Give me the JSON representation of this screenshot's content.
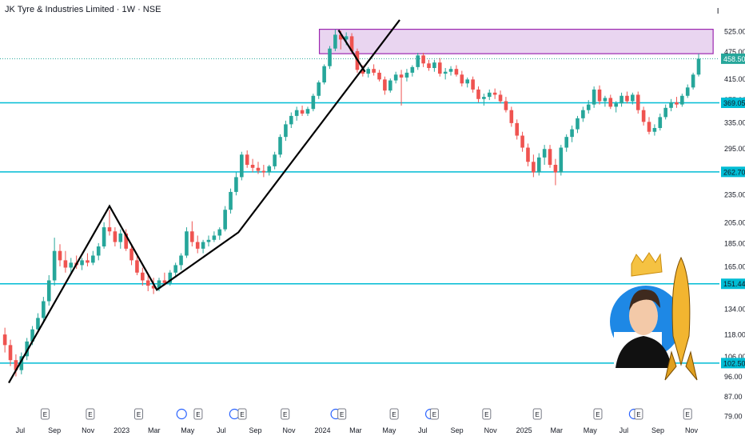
{
  "header": {
    "title": "JK Tyre & Industries Limited · 1W · NSE",
    "currency": "INR"
  },
  "colors": {
    "up": "#26a69a",
    "down": "#ef5350",
    "level_line": "#00bcd4",
    "zone_fill": "#e9d5f0",
    "zone_stroke": "#9c27b0",
    "trend": "#000000",
    "axis_text": "#131722",
    "current_price_bg": "#26a69a",
    "level_label_bg": "#00bcd4"
  },
  "chart_data": {
    "type": "candlestick",
    "interval": "1W",
    "y_scale": "log",
    "price_ticks": [
      "525.00",
      "475.00",
      "415.00",
      "375.00",
      "335.00",
      "295.00",
      "235.00",
      "205.00",
      "185.00",
      "165.00",
      "134.00",
      "118.00",
      "106.00",
      "96.00",
      "87.00",
      "79.00"
    ],
    "price_tick_values": [
      525,
      475,
      415,
      375,
      335,
      295,
      235,
      205,
      185,
      165,
      134,
      118,
      106,
      96,
      87,
      79
    ],
    "x_labels": [
      "Jul",
      "Sep",
      "Nov",
      "2023",
      "Mar",
      "May",
      "Jul",
      "Sep",
      "Nov",
      "2024",
      "Mar",
      "May",
      "Jul",
      "Sep",
      "Nov",
      "2025",
      "Mar",
      "May",
      "Jul",
      "Sep",
      "Nov"
    ],
    "x_label_dates": [
      "2022-07-01",
      "2022-09-01",
      "2022-11-01",
      "2023-01-01",
      "2023-03-01",
      "2023-05-01",
      "2023-07-01",
      "2023-09-01",
      "2023-11-01",
      "2024-01-01",
      "2024-03-01",
      "2024-05-01",
      "2024-07-01",
      "2024-09-01",
      "2024-11-01",
      "2025-01-01",
      "2025-03-01",
      "2025-05-01",
      "2025-07-01",
      "2025-09-01",
      "2025-11-01"
    ],
    "horizontal_levels": [
      {
        "value": 369.05,
        "label": "369.05"
      },
      {
        "value": 262.7,
        "label": "262.70"
      },
      {
        "value": 151.44,
        "label": "151.44"
      },
      {
        "value": 102.5,
        "label": "102.50"
      }
    ],
    "current_price": {
      "value": 458.5,
      "label": "458.50"
    },
    "resistance_zone": {
      "from_date": "2024-01-01",
      "to_date": "2025-11-20",
      "low": 470,
      "high": 530
    },
    "trendlines": [
      {
        "points": [
          [
            "2022-06-10",
            93
          ],
          [
            "2022-12-10",
            222
          ],
          [
            "2023-03-06",
            147
          ],
          [
            "2023-08-01",
            195
          ],
          [
            "2024-05-20",
            555
          ]
        ]
      },
      {
        "points": [
          [
            "2024-01-30",
            528
          ],
          [
            "2024-03-18",
            430
          ]
        ]
      }
    ],
    "event_markers": [
      {
        "date": "2022-08-15",
        "type": "E"
      },
      {
        "date": "2022-11-05",
        "type": "E"
      },
      {
        "date": "2023-02-01",
        "type": "E"
      },
      {
        "date": "2023-04-20",
        "type": "D"
      },
      {
        "date": "2023-05-20",
        "type": "E"
      },
      {
        "date": "2023-07-25",
        "type": "D"
      },
      {
        "date": "2023-08-08",
        "type": "E"
      },
      {
        "date": "2023-10-25",
        "type": "E"
      },
      {
        "date": "2024-01-25",
        "type": "D"
      },
      {
        "date": "2024-02-05",
        "type": "E"
      },
      {
        "date": "2024-05-10",
        "type": "E"
      },
      {
        "date": "2024-07-15",
        "type": "D"
      },
      {
        "date": "2024-07-22",
        "type": "E"
      },
      {
        "date": "2024-10-25",
        "type": "E"
      },
      {
        "date": "2025-01-25",
        "type": "E"
      },
      {
        "date": "2025-05-15",
        "type": "E"
      },
      {
        "date": "2025-07-20",
        "type": "D"
      },
      {
        "date": "2025-07-28",
        "type": "E"
      },
      {
        "date": "2025-10-25",
        "type": "E"
      }
    ],
    "candles": [
      {
        "d": "2022-06-03",
        "o": 118,
        "h": 122,
        "l": 108,
        "c": 112
      },
      {
        "d": "2022-06-13",
        "o": 112,
        "h": 115,
        "l": 101,
        "c": 104
      },
      {
        "d": "2022-06-23",
        "o": 104,
        "h": 107,
        "l": 96,
        "c": 99
      },
      {
        "d": "2022-07-03",
        "o": 99,
        "h": 108,
        "l": 97,
        "c": 106
      },
      {
        "d": "2022-07-13",
        "o": 106,
        "h": 116,
        "l": 104,
        "c": 114
      },
      {
        "d": "2022-07-23",
        "o": 114,
        "h": 123,
        "l": 112,
        "c": 121
      },
      {
        "d": "2022-08-02",
        "o": 121,
        "h": 131,
        "l": 119,
        "c": 128
      },
      {
        "d": "2022-08-12",
        "o": 128,
        "h": 142,
        "l": 126,
        "c": 139
      },
      {
        "d": "2022-08-22",
        "o": 139,
        "h": 158,
        "l": 136,
        "c": 154
      },
      {
        "d": "2022-09-01",
        "o": 154,
        "h": 190,
        "l": 150,
        "c": 178
      },
      {
        "d": "2022-09-11",
        "o": 178,
        "h": 184,
        "l": 165,
        "c": 170
      },
      {
        "d": "2022-09-21",
        "o": 170,
        "h": 178,
        "l": 160,
        "c": 164
      },
      {
        "d": "2022-10-01",
        "o": 164,
        "h": 172,
        "l": 160,
        "c": 168
      },
      {
        "d": "2022-10-11",
        "o": 168,
        "h": 174,
        "l": 163,
        "c": 166
      },
      {
        "d": "2022-10-21",
        "o": 166,
        "h": 172,
        "l": 162,
        "c": 170
      },
      {
        "d": "2022-10-31",
        "o": 170,
        "h": 176,
        "l": 165,
        "c": 168
      },
      {
        "d": "2022-11-10",
        "o": 168,
        "h": 178,
        "l": 166,
        "c": 174
      },
      {
        "d": "2022-11-20",
        "o": 174,
        "h": 185,
        "l": 170,
        "c": 182
      },
      {
        "d": "2022-11-30",
        "o": 182,
        "h": 205,
        "l": 180,
        "c": 200
      },
      {
        "d": "2022-12-10",
        "o": 200,
        "h": 218,
        "l": 192,
        "c": 196
      },
      {
        "d": "2022-12-20",
        "o": 196,
        "h": 200,
        "l": 182,
        "c": 186
      },
      {
        "d": "2022-12-30",
        "o": 186,
        "h": 198,
        "l": 180,
        "c": 194
      },
      {
        "d": "2023-01-09",
        "o": 194,
        "h": 198,
        "l": 178,
        "c": 180
      },
      {
        "d": "2023-01-19",
        "o": 180,
        "h": 184,
        "l": 166,
        "c": 170
      },
      {
        "d": "2023-01-29",
        "o": 170,
        "h": 174,
        "l": 158,
        "c": 160
      },
      {
        "d": "2023-02-08",
        "o": 160,
        "h": 164,
        "l": 150,
        "c": 154
      },
      {
        "d": "2023-02-18",
        "o": 154,
        "h": 158,
        "l": 146,
        "c": 150
      },
      {
        "d": "2023-02-28",
        "o": 150,
        "h": 156,
        "l": 144,
        "c": 148
      },
      {
        "d": "2023-03-10",
        "o": 148,
        "h": 156,
        "l": 146,
        "c": 154
      },
      {
        "d": "2023-03-20",
        "o": 154,
        "h": 160,
        "l": 150,
        "c": 152
      },
      {
        "d": "2023-03-30",
        "o": 152,
        "h": 162,
        "l": 150,
        "c": 160
      },
      {
        "d": "2023-04-09",
        "o": 160,
        "h": 168,
        "l": 156,
        "c": 166
      },
      {
        "d": "2023-04-19",
        "o": 166,
        "h": 176,
        "l": 162,
        "c": 174
      },
      {
        "d": "2023-04-29",
        "o": 174,
        "h": 200,
        "l": 172,
        "c": 196
      },
      {
        "d": "2023-05-09",
        "o": 196,
        "h": 206,
        "l": 182,
        "c": 186
      },
      {
        "d": "2023-05-19",
        "o": 186,
        "h": 192,
        "l": 176,
        "c": 180
      },
      {
        "d": "2023-05-29",
        "o": 180,
        "h": 188,
        "l": 176,
        "c": 186
      },
      {
        "d": "2023-06-08",
        "o": 186,
        "h": 192,
        "l": 182,
        "c": 188
      },
      {
        "d": "2023-06-18",
        "o": 188,
        "h": 196,
        "l": 186,
        "c": 192
      },
      {
        "d": "2023-06-28",
        "o": 192,
        "h": 200,
        "l": 188,
        "c": 198
      },
      {
        "d": "2023-07-08",
        "o": 198,
        "h": 222,
        "l": 196,
        "c": 218
      },
      {
        "d": "2023-07-18",
        "o": 218,
        "h": 242,
        "l": 214,
        "c": 238
      },
      {
        "d": "2023-07-28",
        "o": 238,
        "h": 262,
        "l": 234,
        "c": 256
      },
      {
        "d": "2023-08-07",
        "o": 256,
        "h": 290,
        "l": 252,
        "c": 286
      },
      {
        "d": "2023-08-17",
        "o": 286,
        "h": 292,
        "l": 268,
        "c": 272
      },
      {
        "d": "2023-08-27",
        "o": 272,
        "h": 280,
        "l": 262,
        "c": 268
      },
      {
        "d": "2023-09-06",
        "o": 268,
        "h": 276,
        "l": 260,
        "c": 264
      },
      {
        "d": "2023-09-16",
        "o": 264,
        "h": 272,
        "l": 256,
        "c": 262
      },
      {
        "d": "2023-09-26",
        "o": 262,
        "h": 272,
        "l": 258,
        "c": 270
      },
      {
        "d": "2023-10-06",
        "o": 270,
        "h": 290,
        "l": 266,
        "c": 286
      },
      {
        "d": "2023-10-16",
        "o": 286,
        "h": 316,
        "l": 282,
        "c": 312
      },
      {
        "d": "2023-10-26",
        "o": 312,
        "h": 338,
        "l": 306,
        "c": 332
      },
      {
        "d": "2023-11-05",
        "o": 332,
        "h": 352,
        "l": 326,
        "c": 346
      },
      {
        "d": "2023-11-15",
        "o": 346,
        "h": 362,
        "l": 338,
        "c": 356
      },
      {
        "d": "2023-11-25",
        "o": 356,
        "h": 364,
        "l": 346,
        "c": 350
      },
      {
        "d": "2023-12-05",
        "o": 350,
        "h": 362,
        "l": 346,
        "c": 358
      },
      {
        "d": "2023-12-15",
        "o": 358,
        "h": 386,
        "l": 354,
        "c": 382
      },
      {
        "d": "2023-12-25",
        "o": 382,
        "h": 412,
        "l": 376,
        "c": 408
      },
      {
        "d": "2024-01-04",
        "o": 408,
        "h": 446,
        "l": 404,
        "c": 442
      },
      {
        "d": "2024-01-14",
        "o": 442,
        "h": 488,
        "l": 436,
        "c": 482
      },
      {
        "d": "2024-01-24",
        "o": 482,
        "h": 530,
        "l": 476,
        "c": 516
      },
      {
        "d": "2024-02-03",
        "o": 516,
        "h": 526,
        "l": 480,
        "c": 504
      },
      {
        "d": "2024-02-13",
        "o": 504,
        "h": 522,
        "l": 490,
        "c": 512
      },
      {
        "d": "2024-02-23",
        "o": 512,
        "h": 520,
        "l": 470,
        "c": 476
      },
      {
        "d": "2024-03-04",
        "o": 476,
        "h": 482,
        "l": 428,
        "c": 434
      },
      {
        "d": "2024-03-14",
        "o": 434,
        "h": 444,
        "l": 420,
        "c": 426
      },
      {
        "d": "2024-03-24",
        "o": 426,
        "h": 440,
        "l": 418,
        "c": 436
      },
      {
        "d": "2024-04-03",
        "o": 436,
        "h": 446,
        "l": 422,
        "c": 428
      },
      {
        "d": "2024-04-13",
        "o": 428,
        "h": 434,
        "l": 410,
        "c": 414
      },
      {
        "d": "2024-04-23",
        "o": 414,
        "h": 420,
        "l": 384,
        "c": 392
      },
      {
        "d": "2024-05-03",
        "o": 392,
        "h": 416,
        "l": 388,
        "c": 412
      },
      {
        "d": "2024-05-13",
        "o": 412,
        "h": 430,
        "l": 406,
        "c": 424
      },
      {
        "d": "2024-05-23",
        "o": 424,
        "h": 434,
        "l": 364,
        "c": 418
      },
      {
        "d": "2024-06-02",
        "o": 418,
        "h": 436,
        "l": 410,
        "c": 428
      },
      {
        "d": "2024-06-12",
        "o": 428,
        "h": 444,
        "l": 420,
        "c": 440
      },
      {
        "d": "2024-06-22",
        "o": 440,
        "h": 472,
        "l": 434,
        "c": 466
      },
      {
        "d": "2024-07-02",
        "o": 466,
        "h": 472,
        "l": 440,
        "c": 448
      },
      {
        "d": "2024-07-12",
        "o": 448,
        "h": 456,
        "l": 432,
        "c": 438
      },
      {
        "d": "2024-07-22",
        "o": 438,
        "h": 456,
        "l": 430,
        "c": 450
      },
      {
        "d": "2024-08-01",
        "o": 450,
        "h": 460,
        "l": 420,
        "c": 426
      },
      {
        "d": "2024-08-11",
        "o": 426,
        "h": 438,
        "l": 414,
        "c": 430
      },
      {
        "d": "2024-08-21",
        "o": 430,
        "h": 442,
        "l": 422,
        "c": 436
      },
      {
        "d": "2024-08-31",
        "o": 436,
        "h": 444,
        "l": 420,
        "c": 424
      },
      {
        "d": "2024-09-10",
        "o": 424,
        "h": 432,
        "l": 400,
        "c": 406
      },
      {
        "d": "2024-09-20",
        "o": 406,
        "h": 418,
        "l": 398,
        "c": 414
      },
      {
        "d": "2024-09-30",
        "o": 414,
        "h": 420,
        "l": 388,
        "c": 394
      },
      {
        "d": "2024-10-10",
        "o": 394,
        "h": 400,
        "l": 370,
        "c": 376
      },
      {
        "d": "2024-10-20",
        "o": 376,
        "h": 386,
        "l": 364,
        "c": 380
      },
      {
        "d": "2024-10-30",
        "o": 380,
        "h": 394,
        "l": 374,
        "c": 388
      },
      {
        "d": "2024-11-09",
        "o": 388,
        "h": 396,
        "l": 376,
        "c": 384
      },
      {
        "d": "2024-11-19",
        "o": 384,
        "h": 392,
        "l": 368,
        "c": 372
      },
      {
        "d": "2024-11-29",
        "o": 372,
        "h": 380,
        "l": 352,
        "c": 356
      },
      {
        "d": "2024-12-09",
        "o": 356,
        "h": 362,
        "l": 328,
        "c": 334
      },
      {
        "d": "2024-12-19",
        "o": 334,
        "h": 340,
        "l": 308,
        "c": 314
      },
      {
        "d": "2024-12-29",
        "o": 314,
        "h": 320,
        "l": 290,
        "c": 296
      },
      {
        "d": "2025-01-08",
        "o": 296,
        "h": 302,
        "l": 270,
        "c": 276
      },
      {
        "d": "2025-01-18",
        "o": 276,
        "h": 286,
        "l": 256,
        "c": 262
      },
      {
        "d": "2025-01-28",
        "o": 262,
        "h": 288,
        "l": 258,
        "c": 282
      },
      {
        "d": "2025-02-07",
        "o": 282,
        "h": 300,
        "l": 272,
        "c": 294
      },
      {
        "d": "2025-02-17",
        "o": 294,
        "h": 300,
        "l": 268,
        "c": 272
      },
      {
        "d": "2025-02-27",
        "o": 272,
        "h": 280,
        "l": 246,
        "c": 262
      },
      {
        "d": "2025-03-09",
        "o": 262,
        "h": 300,
        "l": 258,
        "c": 296
      },
      {
        "d": "2025-03-19",
        "o": 296,
        "h": 316,
        "l": 290,
        "c": 312
      },
      {
        "d": "2025-03-29",
        "o": 312,
        "h": 330,
        "l": 304,
        "c": 324
      },
      {
        "d": "2025-04-08",
        "o": 324,
        "h": 346,
        "l": 318,
        "c": 342
      },
      {
        "d": "2025-04-18",
        "o": 342,
        "h": 362,
        "l": 336,
        "c": 356
      },
      {
        "d": "2025-04-28",
        "o": 356,
        "h": 374,
        "l": 350,
        "c": 366
      },
      {
        "d": "2025-05-08",
        "o": 366,
        "h": 400,
        "l": 360,
        "c": 394
      },
      {
        "d": "2025-05-18",
        "o": 394,
        "h": 402,
        "l": 366,
        "c": 372
      },
      {
        "d": "2025-05-28",
        "o": 372,
        "h": 382,
        "l": 362,
        "c": 378
      },
      {
        "d": "2025-06-07",
        "o": 378,
        "h": 384,
        "l": 358,
        "c": 362
      },
      {
        "d": "2025-06-17",
        "o": 362,
        "h": 372,
        "l": 352,
        "c": 368
      },
      {
        "d": "2025-06-27",
        "o": 368,
        "h": 388,
        "l": 362,
        "c": 382
      },
      {
        "d": "2025-07-07",
        "o": 382,
        "h": 390,
        "l": 368,
        "c": 372
      },
      {
        "d": "2025-07-17",
        "o": 372,
        "h": 388,
        "l": 366,
        "c": 384
      },
      {
        "d": "2025-07-27",
        "o": 384,
        "h": 390,
        "l": 350,
        "c": 356
      },
      {
        "d": "2025-08-06",
        "o": 356,
        "h": 362,
        "l": 330,
        "c": 336
      },
      {
        "d": "2025-08-16",
        "o": 336,
        "h": 344,
        "l": 316,
        "c": 320
      },
      {
        "d": "2025-08-26",
        "o": 320,
        "h": 332,
        "l": 314,
        "c": 326
      },
      {
        "d": "2025-09-05",
        "o": 326,
        "h": 350,
        "l": 322,
        "c": 344
      },
      {
        "d": "2025-09-15",
        "o": 344,
        "h": 366,
        "l": 340,
        "c": 360
      },
      {
        "d": "2025-09-25",
        "o": 360,
        "h": 376,
        "l": 354,
        "c": 370
      },
      {
        "d": "2025-10-05",
        "o": 370,
        "h": 380,
        "l": 360,
        "c": 366
      },
      {
        "d": "2025-10-15",
        "o": 366,
        "h": 386,
        "l": 362,
        "c": 382
      },
      {
        "d": "2025-10-25",
        "o": 382,
        "h": 404,
        "l": 378,
        "c": 398
      },
      {
        "d": "2025-11-04",
        "o": 398,
        "h": 428,
        "l": 394,
        "c": 424
      },
      {
        "d": "2025-11-14",
        "o": 424,
        "h": 470,
        "l": 420,
        "c": 458.5
      }
    ]
  }
}
